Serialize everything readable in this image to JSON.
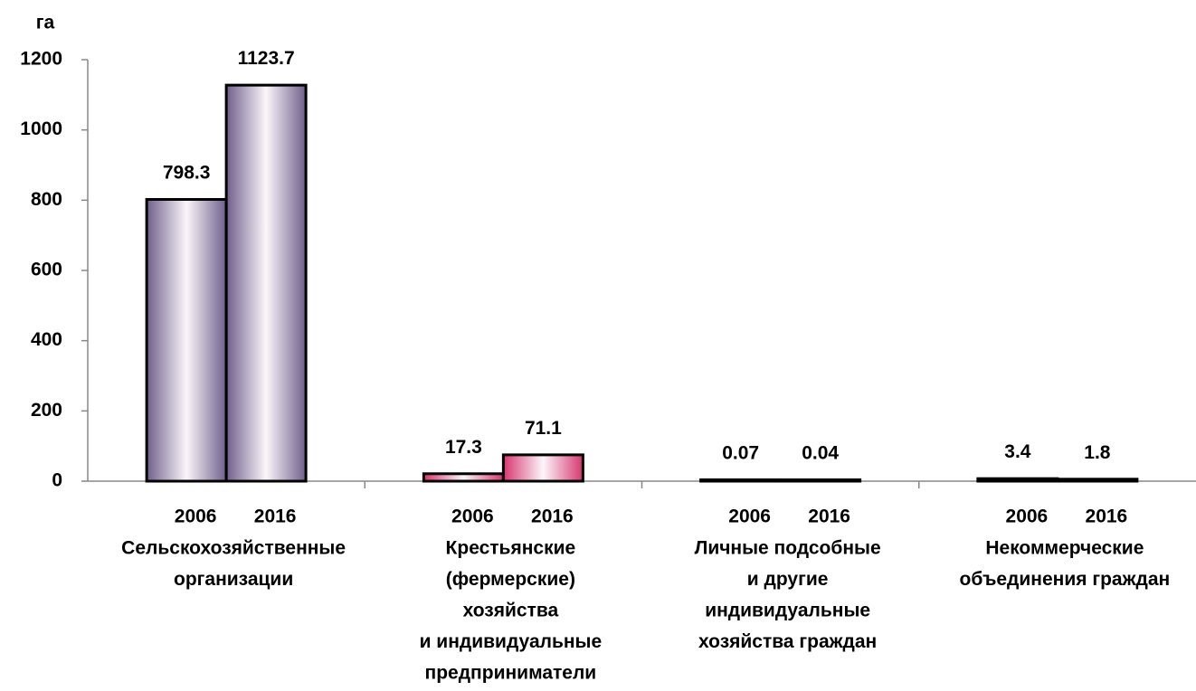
{
  "chart_data": {
    "type": "bar",
    "y_axis_label": "га",
    "categories": [
      [
        "Сельскохозяйственные",
        "организации"
      ],
      [
        "Крестьянские",
        "(фермерские)",
        "хозяйства",
        "и индивидуальные",
        "предприниматели"
      ],
      [
        "Личные подсобные",
        "и другие",
        "индивидуальные",
        "хозяйства граждан"
      ],
      [
        "Некоммерческие",
        "объединения граждан"
      ]
    ],
    "category_colors": [
      "#6f5f8c",
      "#d8356e",
      "#555555",
      "#555555"
    ],
    "series": [
      {
        "name": "2006",
        "values": [
          798.3,
          17.3,
          0.07,
          3.4
        ]
      },
      {
        "name": "2016",
        "values": [
          1123.7,
          71.1,
          0.04,
          1.8
        ]
      }
    ],
    "ylim": [
      0,
      1200
    ],
    "yticks": [
      0,
      200,
      400,
      600,
      800,
      1000,
      1200
    ]
  }
}
